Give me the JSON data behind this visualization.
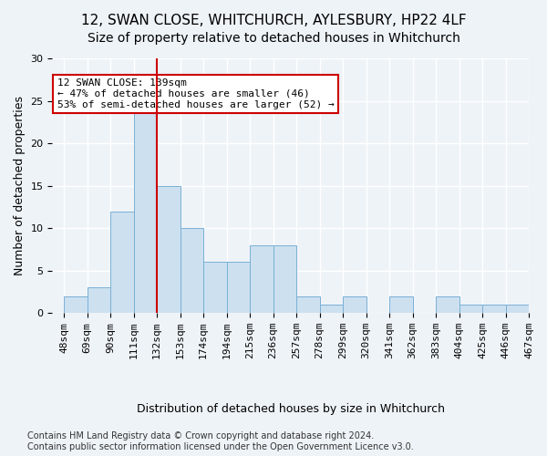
{
  "title1": "12, SWAN CLOSE, WHITCHURCH, AYLESBURY, HP22 4LF",
  "title2": "Size of property relative to detached houses in Whitchurch",
  "xlabel": "Distribution of detached houses by size in Whitchurch",
  "ylabel": "Number of detached properties",
  "bar_values": [
    2,
    3,
    12,
    24,
    15,
    10,
    6,
    6,
    8,
    8,
    2,
    1,
    2,
    0,
    2,
    0,
    2,
    1,
    1,
    1
  ],
  "bar_labels": [
    "48sqm",
    "69sqm",
    "90sqm",
    "111sqm",
    "132sqm",
    "153sqm",
    "174sqm",
    "194sqm",
    "215sqm",
    "236sqm",
    "257sqm",
    "278sqm",
    "299sqm",
    "320sqm",
    "341sqm",
    "362sqm",
    "383sqm",
    "404sqm",
    "425sqm",
    "446sqm",
    "467sqm"
  ],
  "bar_color": "#cce0f0",
  "bar_edge_color": "#7ab0d4",
  "bg_color": "#eef3f8",
  "grid_color": "#ffffff",
  "vline_x": 4,
  "vline_color": "#cc0000",
  "annotation_text": "12 SWAN CLOSE: 139sqm\n← 47% of detached houses are smaller (46)\n53% of semi-detached houses are larger (52) →",
  "annotation_box_color": "#ffffff",
  "annotation_box_edge": "#cc0000",
  "ylim": [
    0,
    30
  ],
  "yticks": [
    0,
    5,
    10,
    15,
    20,
    25,
    30
  ],
  "footer": "Contains HM Land Registry data © Crown copyright and database right 2024.\nContains public sector information licensed under the Open Government Licence v3.0.",
  "title1_fontsize": 11,
  "title2_fontsize": 10,
  "xlabel_fontsize": 9,
  "ylabel_fontsize": 9,
  "tick_fontsize": 8,
  "annotation_fontsize": 8,
  "footer_fontsize": 7
}
